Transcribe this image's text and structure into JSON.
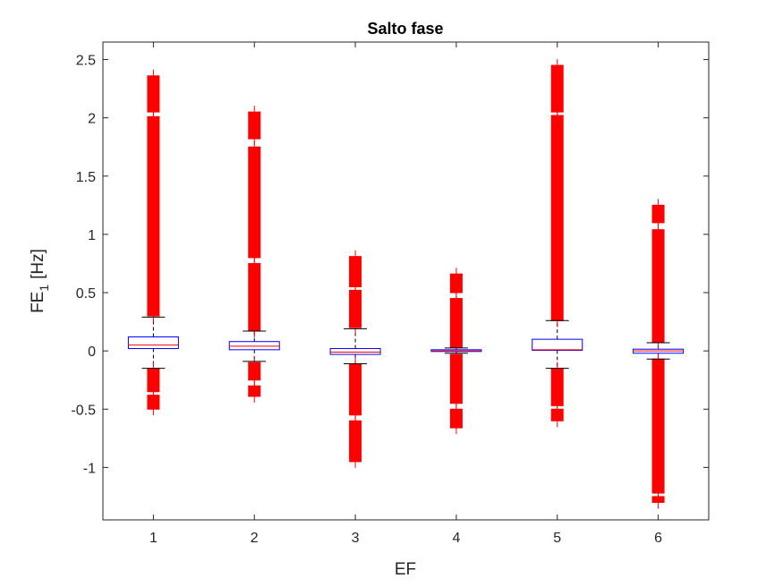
{
  "chart_data": {
    "type": "box",
    "title": "Salto fase",
    "xlabel": "EF",
    "ylabel_main": "FE",
    "ylabel_sub": "1",
    "ylabel_unit": "[Hz]",
    "xlim": [
      0.5,
      6.5
    ],
    "ylim": [
      -1.45,
      2.65
    ],
    "xticks": [
      1,
      2,
      3,
      4,
      5,
      6
    ],
    "yticks": [
      -1,
      -0.5,
      0,
      0.5,
      1,
      1.5,
      2,
      2.5
    ],
    "ytick_labels": [
      "-1",
      "-0.5",
      "0",
      "0.5",
      "1",
      "1.5",
      "2",
      "2.5"
    ],
    "colors": {
      "box": "#0000ff",
      "median": "#ff0000",
      "whisker": "#000000",
      "outlier": "#ff0000",
      "axis": "#262626"
    },
    "boxes": [
      {
        "category": "1",
        "q1": 0.02,
        "median": 0.05,
        "q3": 0.12,
        "whisker_low": -0.15,
        "whisker_high": 0.29,
        "outlier_bands_high": [
          [
            0.3,
            2.01
          ],
          [
            2.05,
            2.36
          ]
        ],
        "outlier_bands_low": [
          [
            -0.15,
            -0.35
          ],
          [
            -0.38,
            -0.5
          ]
        ]
      },
      {
        "category": "2",
        "q1": 0.01,
        "median": 0.04,
        "q3": 0.08,
        "whisker_low": -0.09,
        "whisker_high": 0.17,
        "outlier_bands_high": [
          [
            0.17,
            0.75
          ],
          [
            0.8,
            1.75
          ],
          [
            1.82,
            2.05
          ]
        ],
        "outlier_bands_low": [
          [
            -0.1,
            -0.25
          ],
          [
            -0.3,
            -0.39
          ]
        ]
      },
      {
        "category": "3",
        "q1": -0.03,
        "median": -0.01,
        "q3": 0.02,
        "whisker_low": -0.11,
        "whisker_high": 0.19,
        "outlier_bands_high": [
          [
            0.2,
            0.52
          ],
          [
            0.55,
            0.81
          ]
        ],
        "outlier_bands_low": [
          [
            -0.11,
            -0.55
          ],
          [
            -0.6,
            -0.95
          ]
        ]
      },
      {
        "category": "4",
        "q1": -0.005,
        "median": 0.0,
        "q3": 0.01,
        "whisker_low": -0.02,
        "whisker_high": 0.025,
        "outlier_bands_high": [
          [
            0.03,
            0.45
          ],
          [
            0.5,
            0.66
          ]
        ],
        "outlier_bands_low": [
          [
            -0.03,
            -0.45
          ],
          [
            -0.5,
            -0.66
          ]
        ]
      },
      {
        "category": "5",
        "q1": 0.005,
        "median": 0.01,
        "q3": 0.1,
        "whisker_low": -0.15,
        "whisker_high": 0.26,
        "outlier_bands_high": [
          [
            0.26,
            2.02
          ],
          [
            2.05,
            2.45
          ]
        ],
        "outlier_bands_low": [
          [
            -0.15,
            -0.47
          ],
          [
            -0.5,
            -0.6
          ]
        ]
      },
      {
        "category": "6",
        "q1": -0.02,
        "median": 0.0,
        "q3": 0.015,
        "whisker_low": -0.07,
        "whisker_high": 0.07,
        "outlier_bands_high": [
          [
            0.07,
            1.04
          ],
          [
            1.1,
            1.25
          ]
        ],
        "outlier_bands_low": [
          [
            -0.07,
            -1.22
          ],
          [
            -1.25,
            -1.3
          ]
        ]
      }
    ]
  }
}
